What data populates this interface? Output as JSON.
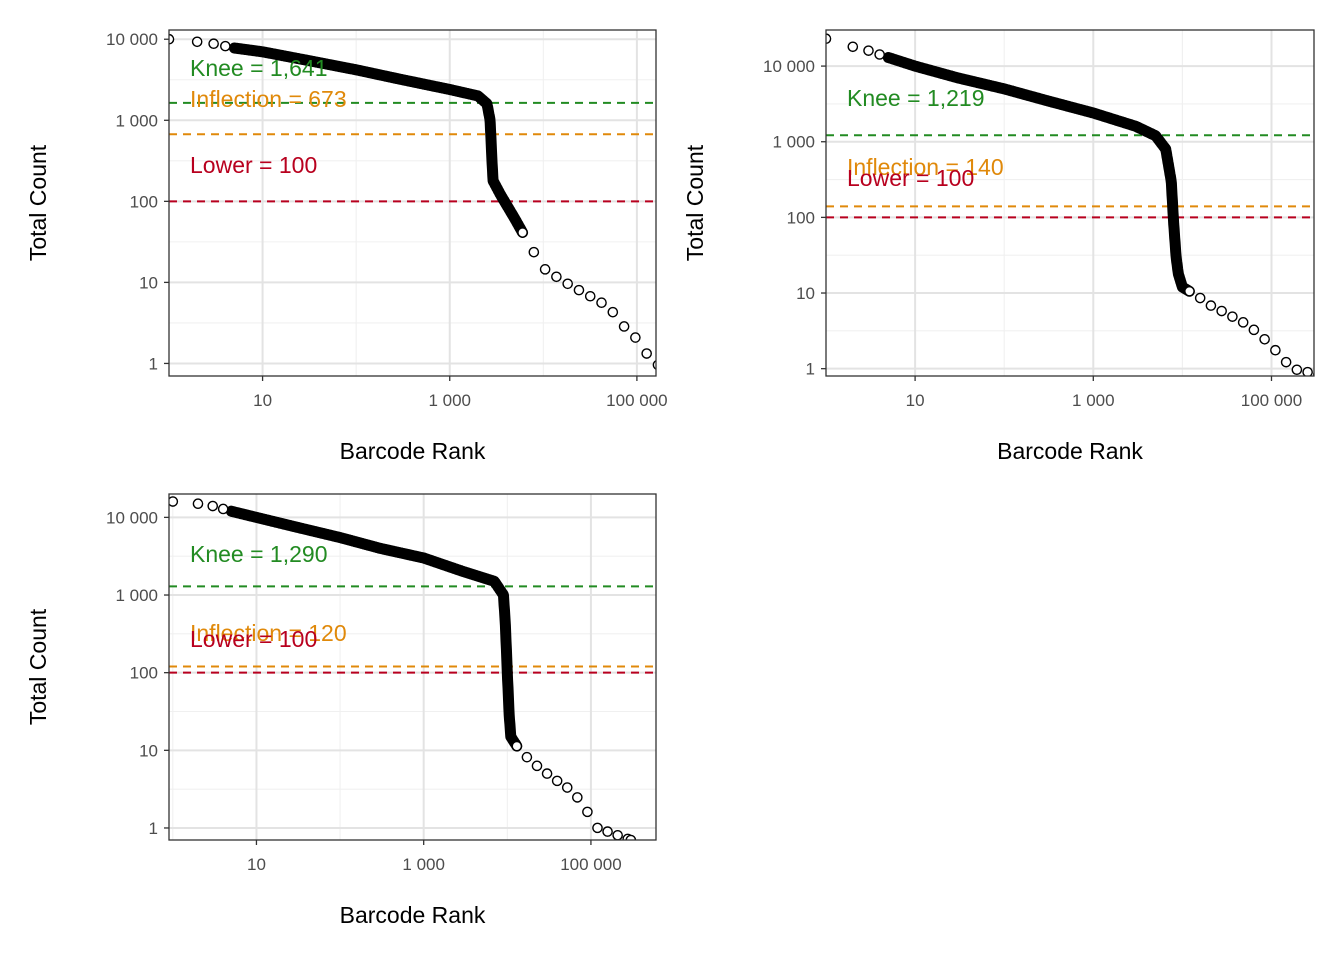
{
  "chart_data": [
    {
      "type": "scatter",
      "xlabel": "Barcode Rank",
      "ylabel": "Total Count",
      "x_scale": "log10",
      "y_scale": "log10",
      "xlim": [
        1,
        160000
      ],
      "ylim": [
        0.7,
        13000
      ],
      "x_ticks": [
        {
          "value": 10,
          "label": "10"
        },
        {
          "value": 1000,
          "label": "1 000"
        },
        {
          "value": 100000,
          "label": "100 000"
        }
      ],
      "y_ticks": [
        {
          "value": 1,
          "label": "1"
        },
        {
          "value": 10,
          "label": "10"
        },
        {
          "value": 100,
          "label": "100"
        },
        {
          "value": 1000,
          "label": "1 000"
        },
        {
          "value": 10000,
          "label": "10 000"
        }
      ],
      "grid": true,
      "curve": [
        [
          1,
          10000
        ],
        [
          2,
          9300
        ],
        [
          3,
          8800
        ],
        [
          5,
          7800
        ],
        [
          10,
          7000
        ],
        [
          30,
          5500
        ],
        [
          100,
          4200
        ],
        [
          300,
          3200
        ],
        [
          1000,
          2400
        ],
        [
          2000,
          2000
        ],
        [
          2500,
          1600
        ],
        [
          2700,
          1000
        ],
        [
          2800,
          400
        ],
        [
          2900,
          180
        ],
        [
          3500,
          120
        ],
        [
          5000,
          60
        ],
        [
          7000,
          30
        ],
        [
          10000,
          15
        ],
        [
          15000,
          11
        ],
        [
          20000,
          9
        ],
        [
          30000,
          7
        ],
        [
          50000,
          5
        ],
        [
          70000,
          3
        ],
        [
          100000,
          2
        ],
        [
          150000,
          1
        ],
        [
          400000,
          0.7
        ]
      ],
      "sparse_from_rank": 6000,
      "lines": [
        {
          "name": "Knee",
          "label": "Knee = 1,641",
          "value": 1641,
          "color": "#228B22"
        },
        {
          "name": "Inflection",
          "label": "Inflection = 673",
          "value": 673,
          "color": "#E0890A"
        },
        {
          "name": "Lower",
          "label": "Lower = 100",
          "value": 100,
          "color": "#B8001E"
        }
      ]
    },
    {
      "type": "scatter",
      "xlabel": "Barcode Rank",
      "ylabel": "Total Count",
      "x_scale": "log10",
      "y_scale": "log10",
      "xlim": [
        1,
        300000
      ],
      "ylim": [
        0.8,
        30000
      ],
      "x_ticks": [
        {
          "value": 10,
          "label": "10"
        },
        {
          "value": 1000,
          "label": "1 000"
        },
        {
          "value": 100000,
          "label": "100 000"
        }
      ],
      "y_ticks": [
        {
          "value": 1,
          "label": "1"
        },
        {
          "value": 10,
          "label": "10"
        },
        {
          "value": 100,
          "label": "100"
        },
        {
          "value": 1000,
          "label": "1 000"
        },
        {
          "value": 10000,
          "label": "10 000"
        }
      ],
      "grid": true,
      "curve": [
        [
          1,
          23000
        ],
        [
          2,
          18000
        ],
        [
          3,
          16000
        ],
        [
          5,
          13000
        ],
        [
          10,
          10000
        ],
        [
          30,
          7000
        ],
        [
          100,
          5000
        ],
        [
          300,
          3500
        ],
        [
          1000,
          2400
        ],
        [
          3000,
          1600
        ],
        [
          5000,
          1200
        ],
        [
          6500,
          800
        ],
        [
          7500,
          300
        ],
        [
          8000,
          80
        ],
        [
          8500,
          30
        ],
        [
          9000,
          18
        ],
        [
          10000,
          12
        ],
        [
          15000,
          9
        ],
        [
          20000,
          7
        ],
        [
          30000,
          5.5
        ],
        [
          50000,
          4
        ],
        [
          70000,
          3
        ],
        [
          100000,
          2
        ],
        [
          170000,
          1
        ],
        [
          400000,
          0.8
        ]
      ],
      "sparse_from_rank": 12000,
      "lines": [
        {
          "name": "Knee",
          "label": "Knee = 1,219",
          "value": 1219,
          "color": "#228B22"
        },
        {
          "name": "Inflection",
          "label": "Inflection = 140",
          "value": 140,
          "color": "#E0890A"
        },
        {
          "name": "Lower",
          "label": "Lower = 100",
          "value": 100,
          "color": "#B8001E"
        }
      ]
    },
    {
      "type": "scatter",
      "xlabel": "Barcode Rank",
      "ylabel": "Total Count",
      "x_scale": "log10",
      "y_scale": "log10",
      "xlim": [
        0.9,
        600000
      ],
      "ylim": [
        0.7,
        20000
      ],
      "x_ticks": [
        {
          "value": 10,
          "label": "10"
        },
        {
          "value": 1000,
          "label": "1 000"
        },
        {
          "value": 100000,
          "label": "100 000"
        }
      ],
      "y_ticks": [
        {
          "value": 1,
          "label": "1"
        },
        {
          "value": 10,
          "label": "10"
        },
        {
          "value": 100,
          "label": "100"
        },
        {
          "value": 1000,
          "label": "1 000"
        },
        {
          "value": 10000,
          "label": "10 000"
        }
      ],
      "grid": true,
      "curve": [
        [
          1,
          16000
        ],
        [
          2,
          15000
        ],
        [
          3,
          14000
        ],
        [
          5,
          12000
        ],
        [
          10,
          10000
        ],
        [
          30,
          7500
        ],
        [
          100,
          5500
        ],
        [
          300,
          4000
        ],
        [
          1000,
          3000
        ],
        [
          3000,
          2000
        ],
        [
          7000,
          1500
        ],
        [
          9000,
          1000
        ],
        [
          9500,
          400
        ],
        [
          10000,
          100
        ],
        [
          10500,
          30
        ],
        [
          11000,
          15
        ],
        [
          14000,
          10
        ],
        [
          20000,
          7
        ],
        [
          30000,
          5
        ],
        [
          40000,
          4
        ],
        [
          60000,
          3
        ],
        [
          80000,
          2
        ],
        [
          120000,
          1
        ],
        [
          300000,
          0.7
        ]
      ],
      "sparse_from_rank": 13000,
      "lines": [
        {
          "name": "Knee",
          "label": "Knee = 1,290",
          "value": 1290,
          "color": "#228B22"
        },
        {
          "name": "Inflection",
          "label": "Inflection = 120",
          "value": 120,
          "color": "#E0890A"
        },
        {
          "name": "Lower",
          "label": "Lower = 100",
          "value": 100,
          "color": "#B8001E"
        }
      ]
    }
  ]
}
